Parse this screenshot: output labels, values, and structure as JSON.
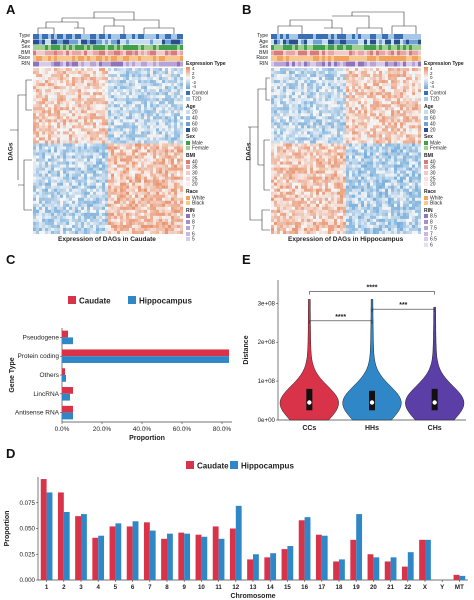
{
  "panels": {
    "a": {
      "letter": "A",
      "title": "Expression of DAGs in Caudate",
      "row_label": "DAGs",
      "ann_labels": [
        "Type",
        "Age",
        "Sex",
        "BMI",
        "Race",
        "RIN"
      ]
    },
    "b": {
      "letter": "B",
      "title": "Expression of DAGs in Hippocampus",
      "row_label": "DAGs",
      "ann_labels": [
        "Type",
        "Age",
        "Sex",
        "BMI",
        "Race",
        "RIN"
      ]
    },
    "c": {
      "letter": "C"
    },
    "d": {
      "letter": "D"
    },
    "e": {
      "letter": "E"
    }
  },
  "legend_a": {
    "scale_title": "",
    "scale_ticks": [
      "4",
      "2",
      "0",
      "-2",
      "-4"
    ],
    "groups": [
      {
        "title": "Expression Type",
        "items": [
          "Control",
          "T2D"
        ]
      },
      {
        "title": "Age",
        "items": [
          "20",
          "40",
          "60",
          "80"
        ]
      },
      {
        "title": "Sex",
        "items": [
          "Male",
          "Female"
        ]
      },
      {
        "title": "BMI",
        "items": [
          "40",
          "35",
          "30",
          "25",
          "20"
        ]
      },
      {
        "title": "Race",
        "items": [
          "White",
          "Black"
        ]
      },
      {
        "title": "RIN",
        "items": [
          "9",
          "8",
          "7",
          "6",
          "5"
        ]
      }
    ]
  },
  "legend_b": {
    "scale_ticks": [
      "4",
      "2",
      "0",
      "-2",
      "-4"
    ],
    "groups": [
      {
        "title": "Expression Type",
        "items": [
          "Control",
          "T2D"
        ]
      },
      {
        "title": "Age",
        "items": [
          "80",
          "60",
          "40",
          "20"
        ]
      },
      {
        "title": "Sex",
        "items": [
          "Male",
          "Female"
        ]
      },
      {
        "title": "BMI",
        "items": [
          "40",
          "35",
          "30",
          "25",
          "20"
        ]
      },
      {
        "title": "Race",
        "items": [
          "White",
          "Black"
        ]
      },
      {
        "title": "RIN",
        "items": [
          "8.5",
          "8",
          "7.5",
          "7",
          "6.5",
          "6"
        ]
      }
    ]
  },
  "colors": {
    "caudate": "#d9334a",
    "hippocampus": "#2f87c8",
    "violin1": "#d9334a",
    "violin2": "#2f87c8",
    "violin3": "#5b3fa6",
    "hm_red": "#e8875e",
    "hm_blue": "#6aa6d8"
  },
  "chart_data": [
    {
      "panel": "C",
      "type": "bar",
      "orientation": "horizontal",
      "categories": [
        "Pseudogene",
        "Protein coding",
        "Others",
        "LincRNA",
        "Antisense RNA"
      ],
      "series": [
        {
          "name": "Caudate",
          "values": [
            3.0,
            83.5,
            1.5,
            5.5,
            5.5
          ]
        },
        {
          "name": "Hippocampus",
          "values": [
            5.5,
            83.5,
            2.0,
            4.0,
            5.5
          ]
        }
      ],
      "xlabel": "Proportion",
      "ylabel": "Gene Type",
      "xticks": [
        "0.0%",
        "20.0%",
        "40.0%",
        "60.0%",
        "80.0%"
      ],
      "xlim": [
        0,
        85
      ],
      "legend": "top"
    },
    {
      "panel": "E",
      "type": "violin",
      "categories": [
        "CCs",
        "HHs",
        "CHs"
      ],
      "ylabel": "Distance",
      "yticks": [
        "0e+00",
        "1e+08",
        "2e+08",
        "3e+08"
      ],
      "ylim": [
        0,
        360000000
      ],
      "medians": [
        45000000,
        45000000,
        45000000
      ],
      "q1": [
        25000000,
        25000000,
        25000000
      ],
      "q3": [
        80000000,
        75000000,
        80000000
      ],
      "max": [
        310000000,
        310000000,
        290000000
      ],
      "significance": [
        {
          "pair": [
            "CCs",
            "HHs"
          ],
          "label": "****"
        },
        {
          "pair": [
            "HHs",
            "CHs"
          ],
          "label": "***"
        },
        {
          "pair": [
            "CCs",
            "CHs"
          ],
          "label": "****"
        }
      ]
    },
    {
      "panel": "D",
      "type": "bar",
      "categories": [
        "1",
        "2",
        "3",
        "4",
        "5",
        "6",
        "7",
        "8",
        "9",
        "10",
        "11",
        "12",
        "13",
        "14",
        "15",
        "16",
        "17",
        "18",
        "19",
        "20",
        "21",
        "22",
        "X",
        "Y",
        "MT"
      ],
      "series": [
        {
          "name": "Caudate",
          "values": [
            0.098,
            0.085,
            0.062,
            0.041,
            0.052,
            0.052,
            0.056,
            0.04,
            0.046,
            0.044,
            0.052,
            0.05,
            0.02,
            0.022,
            0.03,
            0.058,
            0.044,
            0.018,
            0.039,
            0.025,
            0.018,
            0.013,
            0.039,
            0.0,
            0.005
          ]
        },
        {
          "name": "Hippocampus",
          "values": [
            0.085,
            0.066,
            0.064,
            0.043,
            0.055,
            0.057,
            0.048,
            0.045,
            0.045,
            0.042,
            0.04,
            0.072,
            0.025,
            0.026,
            0.033,
            0.061,
            0.043,
            0.02,
            0.064,
            0.022,
            0.022,
            0.027,
            0.039,
            0.0,
            0.004
          ]
        }
      ],
      "xlabel": "Chromosome",
      "ylabel": "Proportion",
      "yticks": [
        "0.000",
        "0.025",
        "0.050",
        "0.075"
      ],
      "ylim": [
        0,
        0.1
      ],
      "legend": "top"
    }
  ]
}
